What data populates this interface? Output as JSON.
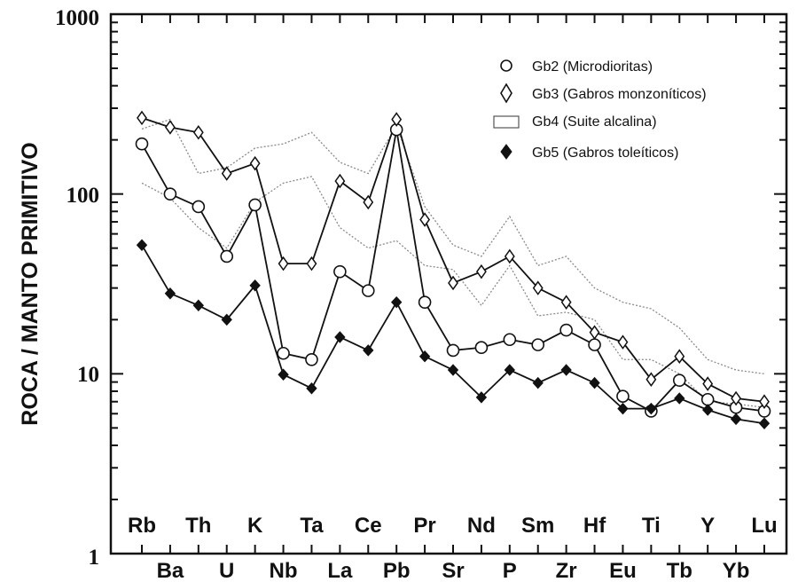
{
  "chart_data": {
    "type": "line",
    "yscale": "log",
    "ylim": [
      1,
      1000
    ],
    "ylabel": "ROCA / MANTO PRIMITIVO",
    "yticks": [
      "1",
      "10",
      "100",
      "1000"
    ],
    "categories": [
      "Rb",
      "Ba",
      "Th",
      "U",
      "K",
      "Nb",
      "Ta",
      "La",
      "Ce",
      "Pb",
      "Pr",
      "Sr",
      "Nd",
      "P",
      "Sm",
      "Zr",
      "Hf",
      "Eu",
      "Ti",
      "Tb",
      "Y",
      "Yb",
      "Lu"
    ],
    "legend_position": "top-right",
    "series": [
      {
        "name": "Gb2 (Microdioritas)",
        "marker": "circle",
        "values": [
          190,
          100,
          85,
          45,
          87,
          13,
          12,
          37,
          29,
          228,
          25,
          13.5,
          14,
          15.5,
          14.5,
          17.5,
          14.5,
          7.5,
          6.2,
          9.2,
          7.2,
          6.5,
          6.2
        ]
      },
      {
        "name": "Gb3 (Gabros monzoníticos)",
        "marker": "diamond",
        "values": [
          265,
          235,
          220,
          130,
          148,
          41,
          41,
          118,
          90,
          260,
          72,
          32,
          37,
          45,
          30,
          25,
          17,
          15,
          9.3,
          12.5,
          8.8,
          7.3,
          7.0
        ]
      },
      {
        "name": "Gb4 (Suite alcalina)",
        "marker": "band",
        "upper": [
          230,
          260,
          130,
          140,
          180,
          190,
          220,
          150,
          130,
          240,
          85,
          52,
          45,
          75,
          40,
          45,
          30,
          25,
          23,
          18,
          12,
          10.5,
          10
        ],
        "lower": [
          115,
          95,
          65,
          50,
          90,
          115,
          125,
          65,
          50,
          55,
          40,
          38,
          24,
          40,
          21,
          22,
          20,
          12,
          12,
          10,
          7,
          6.8,
          6.5
        ]
      },
      {
        "name": "Gb5 (Gabros toleíticos)",
        "marker": "filled-diamond",
        "values": [
          52,
          28,
          24,
          20,
          31,
          9.9,
          8.3,
          16,
          13.5,
          25,
          12.5,
          10.5,
          7.4,
          10.5,
          8.9,
          10.5,
          8.9,
          6.4,
          6.4,
          7.3,
          6.3,
          5.6,
          5.3
        ]
      }
    ]
  }
}
